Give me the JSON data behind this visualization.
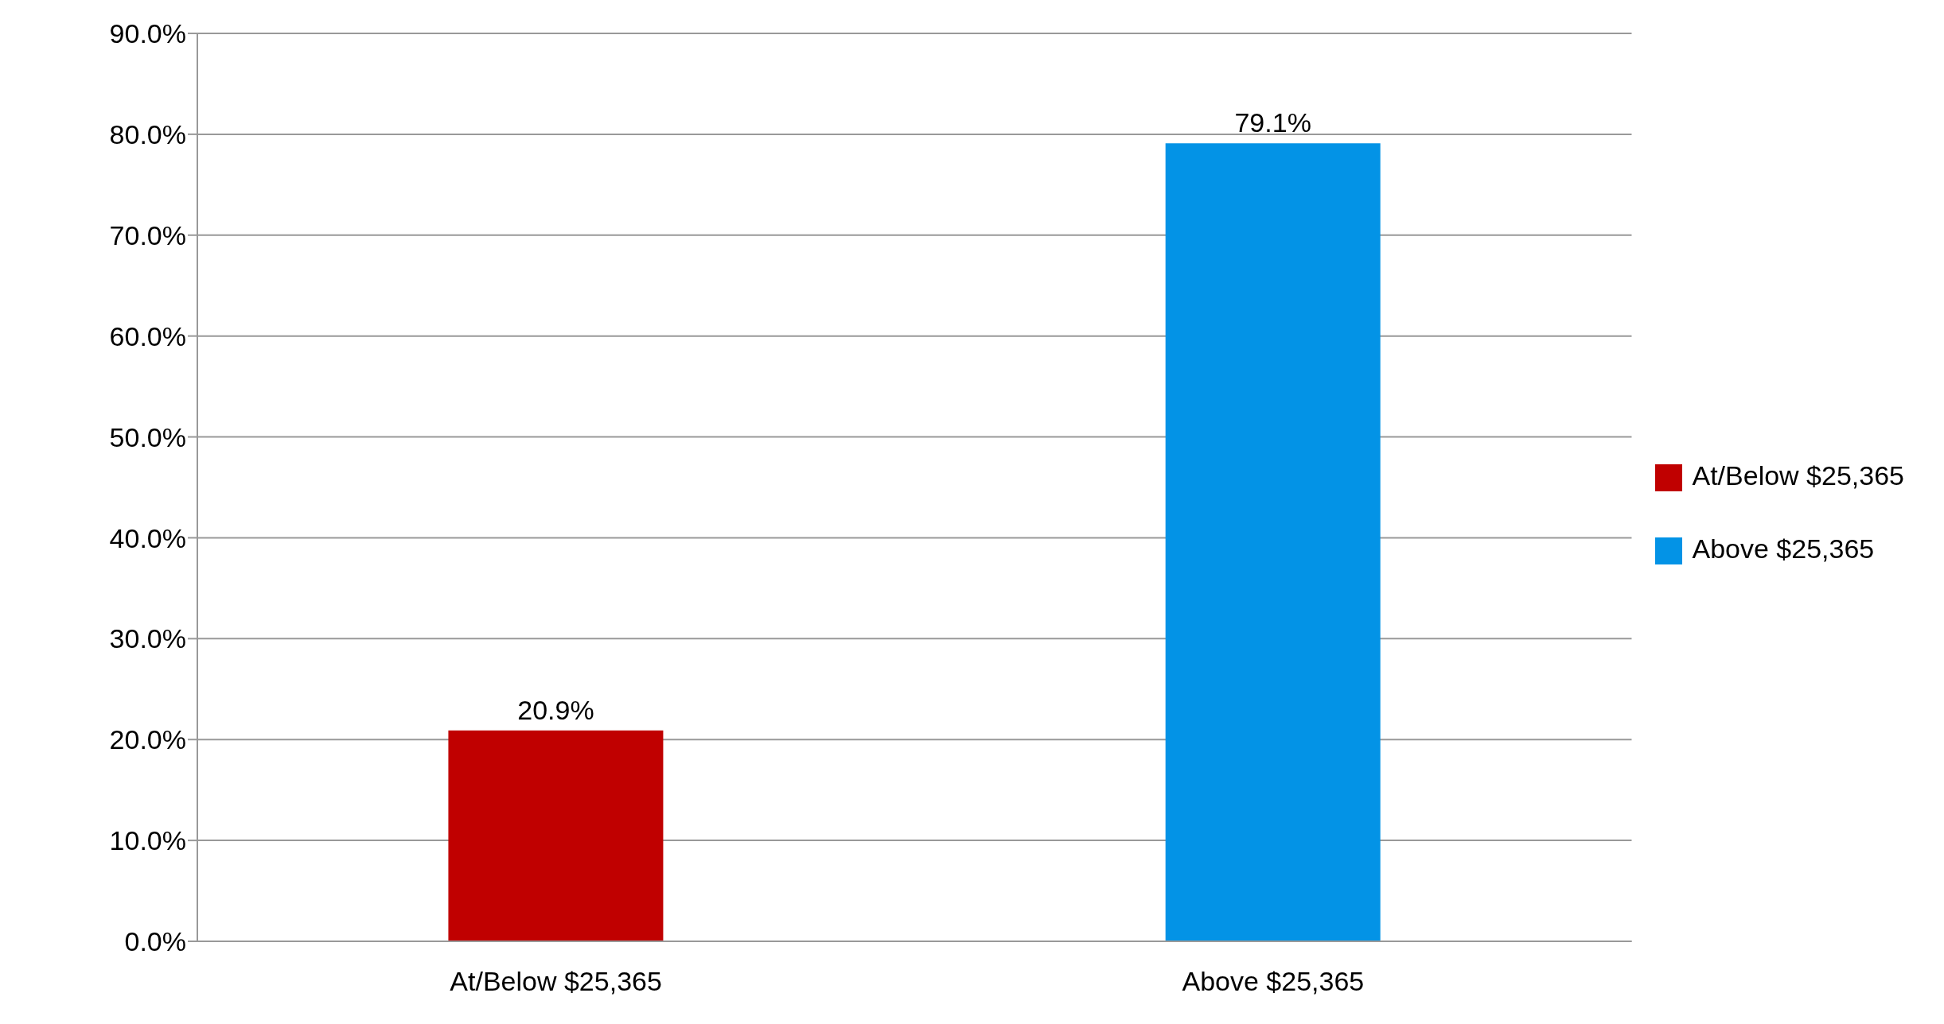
{
  "chart_data": {
    "type": "bar",
    "categories": [
      "At/Below $25,365",
      "Above $25,365"
    ],
    "series": [
      {
        "name": "At/Below $25,365",
        "color": "#c00000",
        "values": [
          20.9,
          null
        ],
        "value_labels": [
          "20.9%",
          null
        ]
      },
      {
        "name": "Above $25,365",
        "color": "#0393e6",
        "values": [
          null,
          79.1
        ],
        "value_labels": [
          null,
          "79.1%"
        ]
      }
    ],
    "ylim": [
      0,
      90
    ],
    "yticks": [
      {
        "value": 0,
        "label": "0.0%"
      },
      {
        "value": 10,
        "label": "10.0%"
      },
      {
        "value": 20,
        "label": "20.0%"
      },
      {
        "value": 30,
        "label": "30.0%"
      },
      {
        "value": 40,
        "label": "40.0%"
      },
      {
        "value": 50,
        "label": "50.0%"
      },
      {
        "value": 60,
        "label": "60.0%"
      },
      {
        "value": 70,
        "label": "70.0%"
      },
      {
        "value": 80,
        "label": "80.0%"
      },
      {
        "value": 90,
        "label": "90.0%"
      }
    ],
    "grid": "y",
    "legend": "right"
  }
}
